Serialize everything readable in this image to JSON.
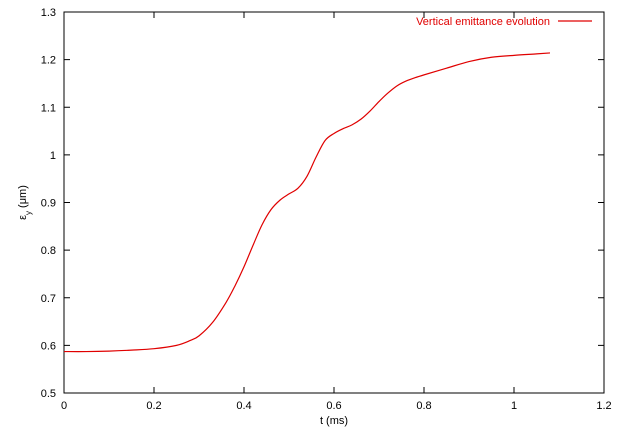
{
  "chart_data": {
    "type": "line",
    "xlabel": "t (ms)",
    "ylabel_main": "ε",
    "ylabel_sub": "y",
    "ylabel_unit": " (μm)",
    "xlim": [
      0,
      1.2
    ],
    "ylim": [
      0.5,
      1.3
    ],
    "xticks": [
      0,
      0.2,
      0.4,
      0.6,
      0.8,
      1,
      1.2
    ],
    "xtick_labels": [
      "0",
      "0.2",
      "0.4",
      "0.6",
      "0.8",
      "1",
      "1.2"
    ],
    "yticks": [
      0.5,
      0.6,
      0.7,
      0.8,
      0.9,
      1,
      1.1,
      1.2,
      1.3
    ],
    "ytick_labels": [
      "0.5",
      "0.6",
      "0.7",
      "0.8",
      "0.9",
      "1",
      "1.1",
      "1.2",
      "1.3"
    ],
    "grid": false,
    "legend_position": "top-right",
    "series": [
      {
        "name": "Vertical emittance evolution",
        "color": "#e00000",
        "x": [
          0,
          0.05,
          0.1,
          0.15,
          0.2,
          0.25,
          0.28,
          0.3,
          0.33,
          0.36,
          0.38,
          0.4,
          0.42,
          0.44,
          0.46,
          0.48,
          0.5,
          0.52,
          0.54,
          0.56,
          0.58,
          0.6,
          0.62,
          0.64,
          0.66,
          0.68,
          0.7,
          0.72,
          0.74,
          0.76,
          0.78,
          0.8,
          0.85,
          0.9,
          0.95,
          1.0,
          1.05,
          1.08
        ],
        "y": [
          0.587,
          0.587,
          0.588,
          0.59,
          0.593,
          0.6,
          0.61,
          0.62,
          0.648,
          0.69,
          0.725,
          0.765,
          0.81,
          0.853,
          0.885,
          0.905,
          0.918,
          0.93,
          0.955,
          0.995,
          1.03,
          1.045,
          1.055,
          1.063,
          1.075,
          1.092,
          1.112,
          1.13,
          1.145,
          1.155,
          1.162,
          1.168,
          1.182,
          1.196,
          1.205,
          1.209,
          1.212,
          1.214
        ]
      }
    ]
  }
}
